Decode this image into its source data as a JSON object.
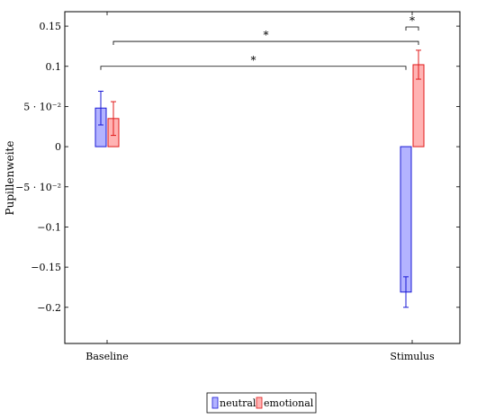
{
  "chart_data": {
    "type": "bar",
    "title": "",
    "xlabel": "",
    "ylabel": "Pupillenweite",
    "categories": [
      "Baseline",
      "Stimulus"
    ],
    "ylim": [
      -0.245,
      0.168
    ],
    "yticks": [
      0.15,
      0.1,
      0.05,
      0,
      -0.05,
      -0.1,
      -0.15,
      -0.2
    ],
    "ytick_labels": [
      "0.15",
      "0.1",
      "5 · 10⁻²",
      "0",
      "−5 · 10⁻²",
      "−0.1",
      "−0.15",
      "−0.2"
    ],
    "grid": false,
    "legend_position": "bottom-center",
    "series": [
      {
        "name": "neutral",
        "values": [
          0.048,
          -0.181
        ],
        "error": [
          0.021,
          0.019
        ],
        "fill": "#b3b3ff",
        "stroke": "#1a1ad6"
      },
      {
        "name": "emotional",
        "values": [
          0.035,
          0.102
        ],
        "error": [
          0.021,
          0.018
        ],
        "fill": "#ffb3b3",
        "stroke": "#e01a1a"
      }
    ],
    "significance": [
      {
        "label": "*",
        "y": 0.1,
        "from": {
          "category": 0,
          "series": 0
        },
        "to": {
          "category": 1,
          "series": 0
        }
      },
      {
        "label": "*",
        "y": 0.131,
        "from": {
          "category": 0,
          "series": 1
        },
        "to": {
          "category": 1,
          "series": 1
        }
      },
      {
        "label": "*",
        "y": 0.149,
        "from": {
          "category": 1,
          "series": 0
        },
        "to": {
          "category": 1,
          "series": 1
        }
      }
    ]
  }
}
